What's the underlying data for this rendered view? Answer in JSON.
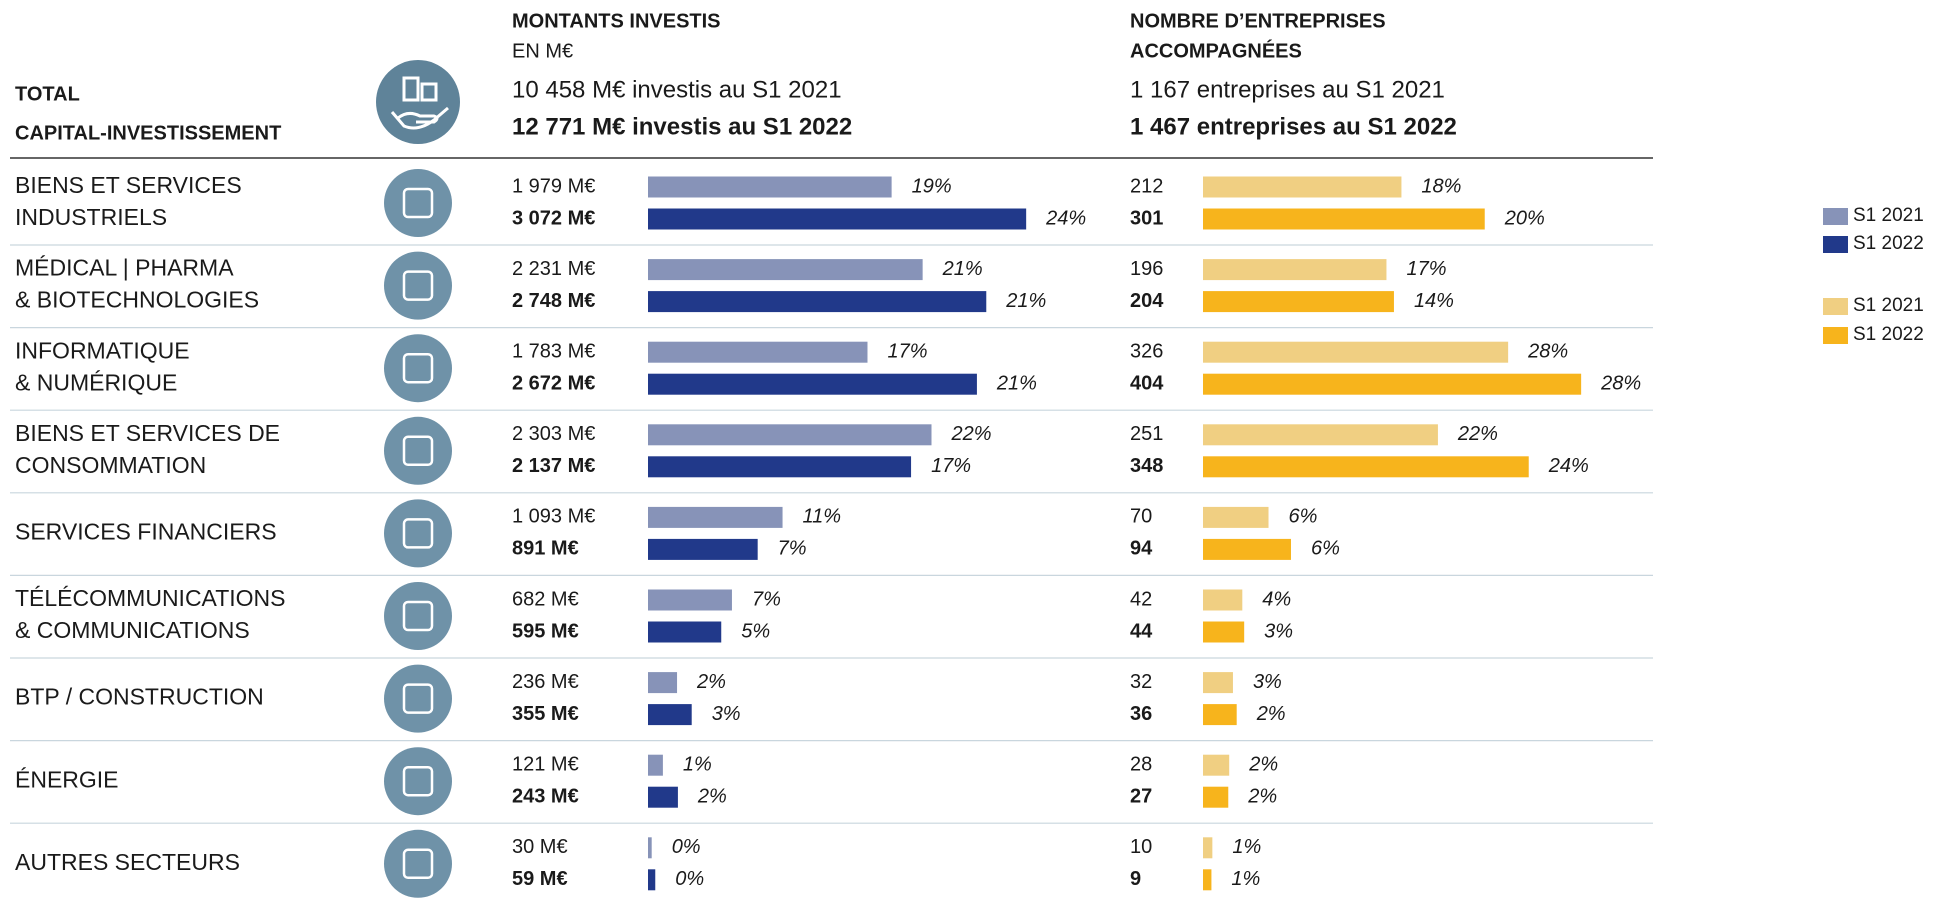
{
  "total": {
    "lines": [
      "TOTAL",
      "CAPITAL-INVESTISSEMENT"
    ]
  },
  "amounts": {
    "title": "MONTANTS INVESTIS",
    "unit": "EN M€",
    "summary_2021": "10 458 M€ investis au S1 2021",
    "summary_2022": "12 771 M€ investis au S1 2022"
  },
  "companies": {
    "title_lines": [
      "NOMBRE D’ENTREPRISES",
      "ACCOMPAGNÉES"
    ],
    "summary_2021": "1 167 entreprises au S1 2021",
    "summary_2022": "1 467 entreprises au S1 2022"
  },
  "legend": [
    {
      "name": "S1 2021",
      "color": "#8793b8"
    },
    {
      "name": "S1 2022",
      "color": "#21398a"
    },
    {
      "name": "S1 2021",
      "color": "#f0cf82"
    },
    {
      "name": "S1 2022",
      "color": "#f7b41c"
    }
  ],
  "sectors": [
    {
      "lines": [
        "BIENS ET SERVICES",
        "INDUSTRIELS"
      ],
      "amounts": {
        "values": [
          1979,
          3072
        ],
        "value_labels": [
          "1 979 M€",
          "3 072 M€"
        ],
        "shares": [
          19,
          24
        ],
        "share_labels": [
          "19%",
          "24%"
        ]
      },
      "companies": {
        "values": [
          212,
          301
        ],
        "shares": [
          18,
          20
        ],
        "share_labels": [
          "18%",
          "20%"
        ]
      }
    },
    {
      "lines": [
        "MÉDICAL | PHARMA",
        "& BIOTECHNOLOGIES"
      ],
      "amounts": {
        "values": [
          2231,
          2748
        ],
        "value_labels": [
          "2 231 M€",
          "2 748 M€"
        ],
        "shares": [
          21,
          21
        ],
        "share_labels": [
          "21%",
          "21%"
        ]
      },
      "companies": {
        "values": [
          196,
          204
        ],
        "shares": [
          17,
          14
        ],
        "share_labels": [
          "17%",
          "14%"
        ]
      }
    },
    {
      "lines": [
        "INFORMATIQUE",
        "& NUMÉRIQUE"
      ],
      "amounts": {
        "values": [
          1783,
          2672
        ],
        "value_labels": [
          "1 783 M€",
          "2 672 M€"
        ],
        "shares": [
          17,
          21
        ],
        "share_labels": [
          "17%",
          "21%"
        ]
      },
      "companies": {
        "values": [
          326,
          404
        ],
        "shares": [
          28,
          28
        ],
        "share_labels": [
          "28%",
          "28%"
        ]
      }
    },
    {
      "lines": [
        "BIENS ET SERVICES DE",
        "CONSOMMATION"
      ],
      "amounts": {
        "values": [
          2303,
          2137
        ],
        "value_labels": [
          "2 303 M€",
          "2 137 M€"
        ],
        "shares": [
          22,
          17
        ],
        "share_labels": [
          "22%",
          "17%"
        ]
      },
      "companies": {
        "values": [
          251,
          348
        ],
        "shares": [
          22,
          24
        ],
        "share_labels": [
          "22%",
          "24%"
        ]
      }
    },
    {
      "lines": [
        "SERVICES FINANCIERS"
      ],
      "amounts": {
        "values": [
          1093,
          891
        ],
        "value_labels": [
          "1 093 M€",
          "891 M€"
        ],
        "shares": [
          11,
          7
        ],
        "share_labels": [
          "11%",
          "7%"
        ]
      },
      "companies": {
        "values": [
          70,
          94
        ],
        "shares": [
          6,
          6
        ],
        "share_labels": [
          "6%",
          "6%"
        ]
      }
    },
    {
      "lines": [
        "TÉLÉCOMMUNICATIONS",
        "& COMMUNICATIONS"
      ],
      "amounts": {
        "values": [
          682,
          595
        ],
        "value_labels": [
          "682 M€",
          "595 M€"
        ],
        "shares": [
          7,
          5
        ],
        "share_labels": [
          "7%",
          "5%"
        ]
      },
      "companies": {
        "values": [
          42,
          44
        ],
        "shares": [
          4,
          3
        ],
        "share_labels": [
          "4%",
          "3%"
        ]
      }
    },
    {
      "lines": [
        "BTP / CONSTRUCTION"
      ],
      "amounts": {
        "values": [
          236,
          355
        ],
        "value_labels": [
          "236 M€",
          "355 M€"
        ],
        "shares": [
          2,
          3
        ],
        "share_labels": [
          "2%",
          "3%"
        ]
      },
      "companies": {
        "values": [
          32,
          36
        ],
        "shares": [
          3,
          2
        ],
        "share_labels": [
          "3%",
          "2%"
        ]
      }
    },
    {
      "lines": [
        "ÉNERGIE"
      ],
      "amounts": {
        "values": [
          121,
          243
        ],
        "value_labels": [
          "121 M€",
          "243 M€"
        ],
        "shares": [
          1,
          2
        ],
        "share_labels": [
          "1%",
          "2%"
        ]
      },
      "companies": {
        "values": [
          28,
          27
        ],
        "shares": [
          2,
          2
        ],
        "share_labels": [
          "2%",
          "2%"
        ]
      }
    },
    {
      "lines": [
        "AUTRES SECTEURS"
      ],
      "amounts": {
        "values": [
          30,
          59
        ],
        "value_labels": [
          "30 M€",
          "59 M€"
        ],
        "shares": [
          0,
          0
        ],
        "share_labels": [
          "0%",
          "0%"
        ]
      },
      "companies": {
        "values": [
          10,
          9
        ],
        "shares": [
          1,
          1
        ],
        "share_labels": [
          "1%",
          "1%"
        ]
      }
    }
  ]
}
